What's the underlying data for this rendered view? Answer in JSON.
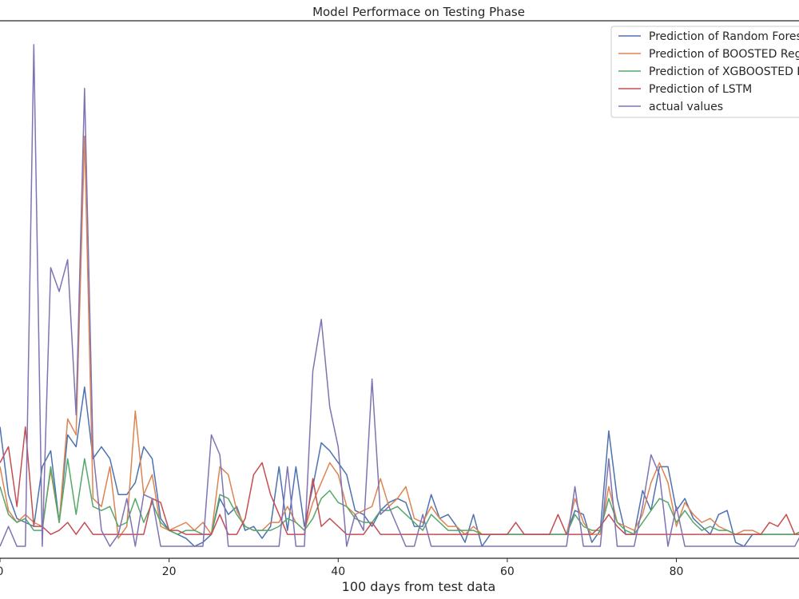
{
  "chart_data": {
    "type": "line",
    "title": "Model Performace on Testing Phase",
    "xlabel": "100 days from test data",
    "ylabel": "",
    "xlim": [
      0,
      94.5
    ],
    "ylim": [
      -0.3,
      13.2
    ],
    "xticks": [
      0,
      20,
      40,
      60,
      80
    ],
    "grid": false,
    "legend_position": "top-right",
    "series": [
      {
        "name": "Prediction of Random Forest",
        "color": "#4c72b0",
        "values": [
          3.0,
          1.3,
          0.7,
          0.6,
          0.5,
          2.0,
          2.4,
          0.6,
          2.8,
          2.5,
          4.0,
          2.2,
          2.5,
          2.2,
          1.3,
          1.3,
          1.6,
          2.5,
          2.2,
          0.7,
          0.4,
          0.3,
          0.2,
          0.0,
          0.1,
          0.3,
          1.2,
          0.8,
          1.0,
          0.4,
          0.5,
          0.2,
          0.5,
          2.0,
          0.4,
          2.0,
          0.5,
          1.5,
          2.6,
          2.4,
          2.1,
          1.8,
          0.9,
          0.8,
          0.5,
          0.9,
          1.1,
          1.2,
          1.1,
          0.5,
          0.5,
          1.3,
          0.7,
          0.8,
          0.5,
          0.1,
          0.8,
          0.0,
          0.3,
          0.3,
          0.3,
          0.3,
          0.3,
          0.3,
          0.3,
          0.3,
          0.3,
          0.3,
          0.9,
          0.8,
          0.1,
          0.4,
          2.9,
          1.2,
          0.3,
          0.3,
          1.4,
          0.9,
          2.0,
          2.0,
          0.9,
          1.2,
          0.7,
          0.5,
          0.3,
          0.8,
          0.9,
          0.1,
          0.0,
          0.3,
          0.3,
          0.3,
          0.3,
          0.3,
          0.3,
          0.4
        ]
      },
      {
        "name": "Prediction of BOOSTED Regressor",
        "color": "#dd8452",
        "values": [
          2.0,
          0.9,
          0.6,
          0.8,
          0.6,
          0.5,
          1.9,
          0.6,
          3.2,
          2.8,
          10.3,
          1.2,
          1.0,
          2.0,
          0.2,
          0.5,
          3.4,
          1.3,
          1.8,
          0.5,
          0.4,
          0.5,
          0.6,
          0.4,
          0.6,
          0.3,
          2.0,
          1.8,
          0.9,
          0.5,
          0.4,
          0.4,
          0.6,
          0.6,
          1.0,
          0.6,
          0.4,
          1.1,
          1.6,
          2.1,
          1.8,
          1.0,
          0.8,
          0.9,
          1.0,
          1.7,
          1.0,
          1.2,
          1.5,
          0.7,
          0.6,
          1.0,
          0.7,
          0.5,
          0.5,
          0.3,
          0.5,
          0.3,
          0.3,
          0.3,
          0.3,
          0.3,
          0.3,
          0.3,
          0.3,
          0.3,
          0.3,
          0.3,
          1.2,
          0.6,
          0.3,
          0.3,
          1.5,
          0.6,
          0.5,
          0.4,
          0.8,
          1.6,
          2.1,
          1.6,
          0.5,
          1.1,
          0.8,
          0.6,
          0.7,
          0.5,
          0.4,
          0.3,
          0.4,
          0.4,
          0.3,
          0.3,
          0.3,
          0.3,
          0.3,
          0.4
        ]
      },
      {
        "name": "Prediction of XGBOOSTED Regressor",
        "color": "#55a868",
        "values": [
          1.5,
          0.8,
          0.6,
          0.7,
          0.4,
          0.4,
          2.0,
          0.6,
          2.2,
          0.8,
          2.2,
          1.0,
          0.9,
          1.0,
          0.5,
          0.6,
          1.2,
          0.6,
          1.1,
          0.6,
          0.4,
          0.3,
          0.4,
          0.4,
          0.3,
          0.3,
          1.3,
          1.2,
          0.8,
          0.5,
          0.4,
          0.4,
          0.4,
          0.5,
          0.7,
          0.6,
          0.4,
          0.7,
          1.2,
          1.4,
          1.1,
          1.0,
          0.7,
          0.6,
          0.6,
          0.9,
          0.9,
          1.0,
          0.8,
          0.6,
          0.4,
          0.8,
          0.6,
          0.4,
          0.4,
          0.4,
          0.4,
          0.3,
          0.3,
          0.3,
          0.3,
          0.3,
          0.3,
          0.3,
          0.3,
          0.3,
          0.3,
          0.3,
          0.8,
          0.5,
          0.4,
          0.4,
          1.2,
          0.6,
          0.4,
          0.3,
          0.6,
          0.9,
          1.2,
          1.1,
          0.6,
          0.9,
          0.6,
          0.4,
          0.5,
          0.4,
          0.4,
          0.3,
          0.3,
          0.3,
          0.3,
          0.3,
          0.3,
          0.3,
          0.3,
          0.4
        ]
      },
      {
        "name": "Prediction of LSTM",
        "color": "#c44e52",
        "values": [
          2.1,
          2.5,
          1.0,
          3.0,
          0.5,
          0.5,
          0.3,
          0.4,
          0.6,
          0.3,
          0.6,
          0.3,
          0.3,
          0.3,
          0.3,
          0.3,
          0.3,
          0.3,
          1.2,
          1.1,
          0.4,
          0.4,
          0.3,
          0.3,
          0.3,
          0.3,
          0.8,
          0.3,
          0.3,
          0.7,
          1.8,
          2.1,
          1.3,
          0.8,
          0.3,
          0.3,
          0.3,
          1.7,
          0.5,
          0.7,
          0.5,
          0.3,
          0.3,
          0.3,
          0.6,
          0.3,
          0.3,
          0.3,
          0.3,
          0.3,
          0.3,
          0.3,
          0.3,
          0.3,
          0.3,
          0.3,
          0.3,
          0.3,
          0.3,
          0.3,
          0.3,
          0.6,
          0.3,
          0.3,
          0.3,
          0.3,
          0.8,
          0.3,
          0.3,
          0.3,
          0.3,
          0.5,
          0.8,
          0.5,
          0.3,
          0.3,
          0.3,
          0.3,
          0.3,
          0.3,
          0.3,
          0.3,
          0.3,
          0.3,
          0.3,
          0.3,
          0.3,
          0.3,
          0.3,
          0.3,
          0.3,
          0.6,
          0.5,
          0.8,
          0.3,
          0.3
        ]
      },
      {
        "name": "actual values",
        "color": "#8172b3",
        "values": [
          0.0,
          0.5,
          0.0,
          0.0,
          12.6,
          0.0,
          7.0,
          6.4,
          7.2,
          3.3,
          11.5,
          2.4,
          0.4,
          0.0,
          0.3,
          1.2,
          0.0,
          1.3,
          1.2,
          0.0,
          0.0,
          0.0,
          0.0,
          0.0,
          0.0,
          2.8,
          2.3,
          0.0,
          0.0,
          0.0,
          0.0,
          0.0,
          0.0,
          0.0,
          2.0,
          0.0,
          0.0,
          4.4,
          5.7,
          3.5,
          2.5,
          0.0,
          0.8,
          0.4,
          4.2,
          0.8,
          1.0,
          0.5,
          0.0,
          0.0,
          0.8,
          0.0,
          0.0,
          0.0,
          0.0,
          0.0,
          0.0,
          0.0,
          0.0,
          0.0,
          0.0,
          0.0,
          0.0,
          0.0,
          0.0,
          0.0,
          0.0,
          0.0,
          1.5,
          0.0,
          0.0,
          0.0,
          2.2,
          0.0,
          0.0,
          0.0,
          1.0,
          2.3,
          1.8,
          0.0,
          1.0,
          0.0,
          0.0,
          0.0,
          0.0,
          0.0,
          0.0,
          0.0,
          0.0,
          0.0,
          0.0,
          0.0,
          0.0,
          0.0,
          0.0,
          0.4
        ]
      }
    ]
  }
}
